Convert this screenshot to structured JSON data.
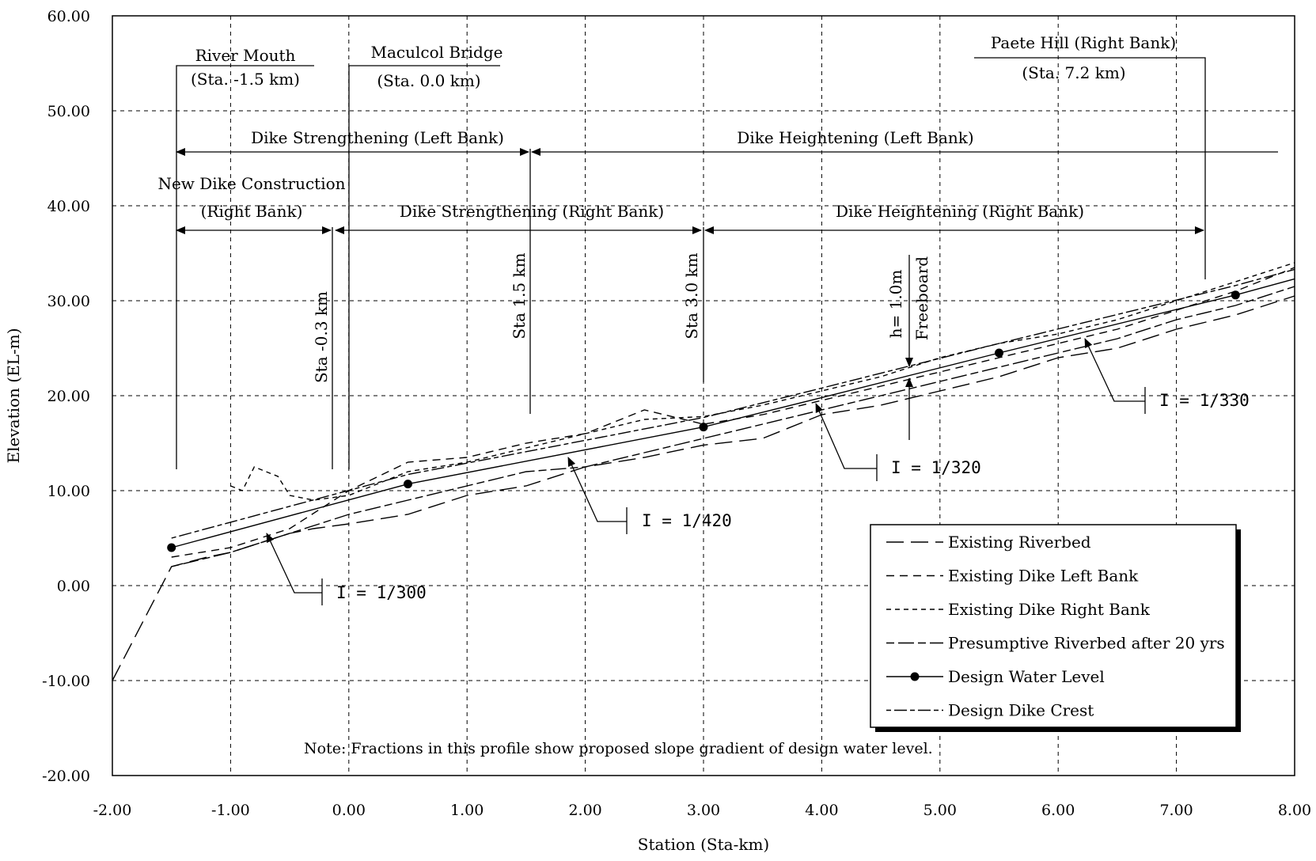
{
  "chart_data": {
    "type": "line",
    "xlabel": "Station (Sta-km)",
    "ylabel": "Elevation (EL-m)",
    "xlim": [
      -2,
      8
    ],
    "ylim": [
      -20,
      60
    ],
    "grid": true,
    "legend_position": "lower-right",
    "x_ticks": [
      "-2.00",
      "-1.00",
      "0.00",
      "1.00",
      "2.00",
      "3.00",
      "4.00",
      "5.00",
      "6.00",
      "7.00",
      "8.00"
    ],
    "y_ticks": [
      "60.00",
      "50.00",
      "40.00",
      "30.00",
      "20.00",
      "10.00",
      "0.00",
      "-10.00",
      "-20.00"
    ],
    "series": [
      {
        "name": "Existing Riverbed",
        "dash": "22,9",
        "markers": false,
        "points": [
          [
            -2.0,
            -10.0
          ],
          [
            -1.5,
            2.0
          ],
          [
            -1.2,
            3.0
          ],
          [
            -1.0,
            3.5
          ],
          [
            -0.5,
            5.5
          ],
          [
            -0.3,
            6.0
          ],
          [
            0.0,
            6.5
          ],
          [
            0.5,
            7.5
          ],
          [
            1.0,
            9.5
          ],
          [
            1.5,
            10.5
          ],
          [
            2.0,
            12.5
          ],
          [
            2.5,
            13.5
          ],
          [
            3.0,
            14.8
          ],
          [
            3.5,
            15.5
          ],
          [
            4.0,
            18.0
          ],
          [
            4.5,
            19.0
          ],
          [
            5.0,
            20.5
          ],
          [
            5.5,
            22.0
          ],
          [
            6.0,
            24.0
          ],
          [
            6.5,
            25.0
          ],
          [
            7.0,
            27.0
          ],
          [
            7.5,
            28.5
          ],
          [
            8.0,
            30.5
          ]
        ]
      },
      {
        "name": "Existing Dike Left Bank",
        "dash": "10,7",
        "markers": false,
        "points": [
          [
            -1.5,
            3.0
          ],
          [
            -1.0,
            4.0
          ],
          [
            -0.5,
            6.0
          ],
          [
            0.0,
            10.0
          ],
          [
            0.5,
            13.0
          ],
          [
            1.0,
            13.5
          ],
          [
            1.5,
            15.0
          ],
          [
            2.0,
            16.0
          ],
          [
            2.5,
            18.5
          ],
          [
            3.0,
            17.0
          ],
          [
            3.5,
            18.0
          ],
          [
            4.0,
            19.5
          ],
          [
            4.5,
            21.0
          ],
          [
            5.0,
            22.5
          ],
          [
            5.5,
            24.0
          ],
          [
            6.0,
            25.5
          ],
          [
            6.5,
            27.0
          ],
          [
            7.0,
            29.0
          ],
          [
            7.5,
            31.0
          ],
          [
            8.0,
            33.5
          ]
        ]
      },
      {
        "name": "Existing Dike Right Bank",
        "dash": "6,5",
        "markers": false,
        "points": [
          [
            -1.0,
            10.5
          ],
          [
            -0.9,
            10.0
          ],
          [
            -0.8,
            12.5
          ],
          [
            -0.6,
            11.5
          ],
          [
            -0.5,
            9.5
          ],
          [
            -0.3,
            9.0
          ],
          [
            0.0,
            9.5
          ],
          [
            0.3,
            11.0
          ],
          [
            0.5,
            12.0
          ],
          [
            1.0,
            13.0
          ],
          [
            1.5,
            14.5
          ],
          [
            2.0,
            16.0
          ],
          [
            2.5,
            17.5
          ],
          [
            3.0,
            17.8
          ],
          [
            3.5,
            19.0
          ],
          [
            4.0,
            20.5
          ],
          [
            4.5,
            22.0
          ],
          [
            5.0,
            24.0
          ],
          [
            5.5,
            25.5
          ],
          [
            6.0,
            26.5
          ],
          [
            6.5,
            28.0
          ],
          [
            7.0,
            30.0
          ],
          [
            7.5,
            32.0
          ],
          [
            8.0,
            34.0
          ]
        ]
      },
      {
        "name": "Presumptive Riverbed after 20 yrs",
        "dash": "10,5,20,5",
        "markers": false,
        "points": [
          [
            -1.5,
            2.0
          ],
          [
            -1.0,
            3.5
          ],
          [
            -0.5,
            5.5
          ],
          [
            0.0,
            7.5
          ],
          [
            0.5,
            9.0
          ],
          [
            1.0,
            10.5
          ],
          [
            1.5,
            12.0
          ],
          [
            2.0,
            12.5
          ],
          [
            2.5,
            14.0
          ],
          [
            3.0,
            15.5
          ],
          [
            3.5,
            17.0
          ],
          [
            4.0,
            18.5
          ],
          [
            4.5,
            20.0
          ],
          [
            5.0,
            21.5
          ],
          [
            5.5,
            23.0
          ],
          [
            6.0,
            24.5
          ],
          [
            6.5,
            26.0
          ],
          [
            7.0,
            28.0
          ],
          [
            7.5,
            29.5
          ],
          [
            8.0,
            31.5
          ]
        ]
      },
      {
        "name": "Design Water Level",
        "dash": "",
        "markers": true,
        "points": [
          [
            -1.5,
            4.0
          ],
          [
            0.5,
            10.7
          ],
          [
            3.0,
            16.7
          ],
          [
            4.0,
            19.8
          ],
          [
            5.5,
            24.5
          ],
          [
            7.5,
            30.6
          ],
          [
            8.0,
            32.3
          ]
        ],
        "marker_points": [
          [
            -1.5,
            4.0
          ],
          [
            0.5,
            10.7
          ],
          [
            3.0,
            16.7
          ],
          [
            5.5,
            24.5
          ],
          [
            7.5,
            30.6
          ]
        ]
      },
      {
        "name": "Design Dike Crest",
        "dash": "6,4,16,4",
        "markers": false,
        "points": [
          [
            -1.5,
            5.0
          ],
          [
            0.5,
            11.7
          ],
          [
            3.0,
            17.7
          ],
          [
            4.0,
            20.8
          ],
          [
            5.5,
            25.5
          ],
          [
            7.5,
            31.6
          ],
          [
            8.0,
            33.3
          ]
        ]
      }
    ],
    "annotations": {
      "river_mouth": {
        "title": "River Mouth",
        "sub": "(Sta. -1.5 km)"
      },
      "maculcol_bridge": {
        "title": "Maculcol Bridge",
        "sub": "(Sta. 0.0 km)"
      },
      "paete_hill": {
        "title": "Paete Hill (Right Bank)",
        "sub": "(Sta. 7.2 km)"
      },
      "dike_strengthening_left": "Dike Strengthening (Left Bank)",
      "dike_heightening_left": "Dike Heightening (Left Bank)",
      "new_dike_construction": {
        "line1": "New Dike Construction",
        "line2": "(Right Bank)"
      },
      "dike_strengthening_right": "Dike Strengthening (Right Bank)",
      "dike_heightening_right": "Dike Heightening (Right Bank)",
      "sta_minus_03": "Sta -0.3 km",
      "sta_15": "Sta 1.5 km",
      "sta_30": "Sta 3.0 km",
      "freeboard_h": "h= 1.0m",
      "freeboard": "Freeboard",
      "slope_300": "I  =  1/300",
      "slope_420": "I  =  1/420",
      "slope_320": "I  =  1/320",
      "slope_330": "I  =  1/330",
      "note": "Note: Fractions in this profile show proposed slope gradient of design water level."
    }
  }
}
